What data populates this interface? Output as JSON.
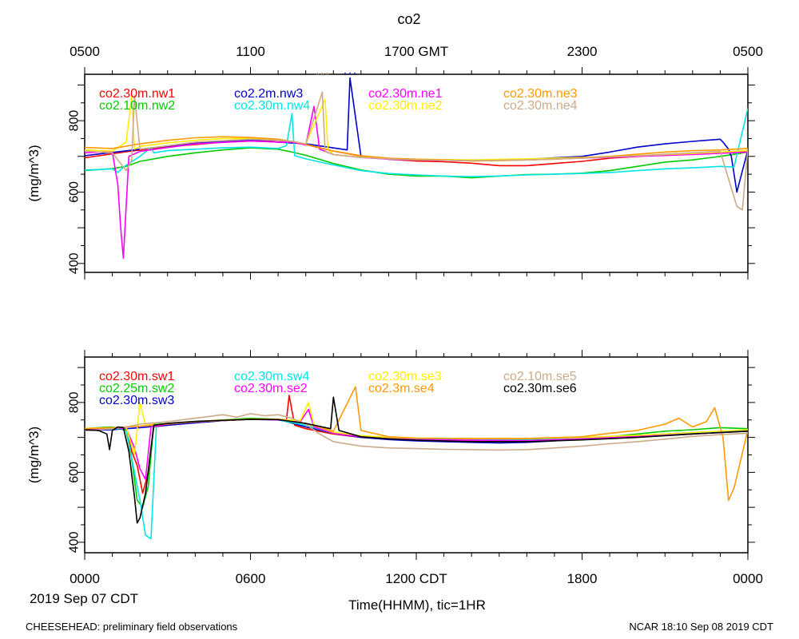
{
  "title": "co2",
  "footer_left": "CHEESEHEAD: preliminary field observations",
  "footer_right": "NCAR 18:10 Sep 08 2019 CDT",
  "date_label": "2019 Sep 07 CDT",
  "chart_data": [
    {
      "type": "line",
      "panel": "top",
      "title": "co2",
      "ylabel": "(mg/m^3)",
      "ylim": [
        375,
        930
      ],
      "yticks": [
        400,
        600,
        800
      ],
      "xlim": [
        0,
        24
      ],
      "x_units": "hours since 0000 CDT",
      "top_axis": {
        "ticks": [
          0,
          6,
          12,
          18,
          24
        ],
        "labels": [
          "0500",
          "1100",
          "1700 GMT",
          "2300",
          "0500"
        ]
      },
      "legend": [
        [
          "co2.30m.nw1",
          "co2.2m.nw3",
          "co2.30m.ne1",
          "co2.30m.ne3"
        ],
        [
          "co2.10m.nw2",
          "co2.30m.nw4",
          "co2.30m.ne2",
          "co2.30m.ne4"
        ]
      ],
      "series": [
        {
          "name": "co2.30m.nw1",
          "color": "#ff0000",
          "x": [
            0,
            1.5,
            3,
            4,
            5,
            6,
            7,
            7.5,
            8,
            9,
            10,
            11,
            12,
            13,
            14,
            15,
            16,
            17,
            18,
            19,
            20,
            21,
            22,
            23,
            24
          ],
          "y": [
            696,
            713,
            727,
            733,
            740,
            743,
            745,
            740,
            733,
            715,
            701,
            692,
            687,
            685,
            681,
            674,
            674,
            680,
            686,
            695,
            700,
            705,
            708,
            712,
            715
          ]
        },
        {
          "name": "co2.10m.nw2",
          "color": "#00cc00",
          "x": [
            0,
            1,
            1.5,
            2,
            3,
            4,
            5,
            6,
            7,
            7.5,
            8,
            9,
            10,
            11,
            12,
            13,
            14,
            15,
            16,
            17,
            18,
            19,
            20,
            21,
            22,
            23,
            24
          ],
          "y": [
            660,
            666,
            672,
            686,
            700,
            710,
            718,
            724,
            720,
            712,
            703,
            680,
            662,
            650,
            645,
            645,
            640,
            645,
            649,
            650,
            653,
            660,
            672,
            684,
            690,
            700,
            712
          ]
        },
        {
          "name": "co2.2m.nw3",
          "color": "#0000cc",
          "x": [
            0,
            2,
            4,
            6,
            8,
            9.5,
            9.6,
            10,
            11,
            12,
            14,
            16,
            18,
            19,
            20,
            21,
            22,
            23,
            23.1,
            23.3,
            23.4,
            23.6,
            24
          ],
          "y": [
            702,
            720,
            738,
            745,
            735,
            718,
            920,
            700,
            692,
            690,
            688,
            692,
            700,
            712,
            726,
            735,
            742,
            748,
            740,
            720,
            700,
            600,
            718
          ]
        },
        {
          "name": "co2.30m.nw4",
          "color": "#00e5e5",
          "x": [
            0,
            0.5,
            1,
            1.2,
            1.4,
            2,
            2.4,
            2.5,
            3,
            4,
            5,
            6,
            7,
            7.3,
            7.5,
            7.6,
            8,
            9,
            10,
            11,
            12,
            13,
            14,
            15,
            16,
            17,
            18,
            19,
            20,
            21,
            22,
            23,
            23.5,
            24
          ],
          "y": [
            662,
            663,
            665,
            655,
            670,
            700,
            725,
            710,
            716,
            720,
            724,
            726,
            722,
            730,
            820,
            702,
            693,
            676,
            660,
            652,
            648,
            645,
            643,
            645,
            648,
            650,
            652,
            655,
            660,
            665,
            668,
            672,
            670,
            835
          ]
        },
        {
          "name": "co2.30m.ne1",
          "color": "#ff00ff",
          "x": [
            0,
            0.5,
            1,
            1.2,
            1.3,
            1.4,
            1.6,
            2,
            4,
            6,
            7,
            7.5,
            8,
            8.3,
            8.5,
            9,
            10,
            11,
            12,
            14,
            16,
            18,
            20,
            22,
            24
          ],
          "y": [
            710,
            712,
            712,
            620,
            500,
            415,
            700,
            714,
            735,
            743,
            740,
            740,
            732,
            840,
            720,
            705,
            697,
            692,
            690,
            688,
            690,
            695,
            700,
            705,
            712
          ]
        },
        {
          "name": "co2.30m.ne2",
          "color": "#ffee00",
          "x": [
            0,
            1,
            1.5,
            1.7,
            1.8,
            2,
            3,
            4,
            5,
            6,
            7,
            7.5,
            8,
            8.7,
            8.8,
            9,
            10,
            11,
            12,
            14,
            16,
            18,
            20,
            22,
            24
          ],
          "y": [
            718,
            715,
            740,
            870,
            720,
            728,
            738,
            745,
            750,
            750,
            746,
            742,
            735,
            860,
            720,
            705,
            698,
            694,
            692,
            690,
            693,
            697,
            702,
            708,
            716
          ]
        },
        {
          "name": "co2.30m.ne3",
          "color": "#ff9900",
          "x": [
            0,
            1,
            2,
            3,
            4,
            5,
            6,
            7,
            7.5,
            8,
            9,
            10,
            11,
            12,
            13,
            14,
            15,
            16,
            17,
            18,
            19,
            20,
            21,
            22,
            23,
            24
          ],
          "y": [
            725,
            722,
            735,
            745,
            752,
            755,
            753,
            748,
            742,
            734,
            715,
            702,
            695,
            692,
            690,
            687,
            688,
            690,
            692,
            696,
            700,
            706,
            712,
            716,
            718,
            722
          ]
        },
        {
          "name": "co2.30m.ne4",
          "color": "#ccaa88",
          "x": [
            0,
            1,
            1.5,
            1.7,
            1.8,
            2,
            3,
            4,
            6,
            7,
            7.5,
            8,
            8.6,
            8.7,
            9,
            10,
            11,
            12,
            14,
            16,
            18,
            20,
            22,
            23,
            23.6,
            23.8,
            24
          ],
          "y": [
            715,
            710,
            660,
            690,
            870,
            720,
            730,
            740,
            748,
            745,
            742,
            735,
            880,
            715,
            705,
            697,
            693,
            690,
            688,
            690,
            695,
            702,
            710,
            714,
            560,
            550,
            720
          ]
        }
      ]
    },
    {
      "type": "line",
      "panel": "bottom",
      "ylabel": "(mg/m^3)",
      "ylim": [
        370,
        930
      ],
      "yticks": [
        400,
        600,
        800
      ],
      "xlim": [
        0,
        24
      ],
      "x_units": "hours since 0000 CDT",
      "xticks": [
        0,
        6,
        12,
        18,
        24
      ],
      "xticklabels": [
        "0000",
        "0600",
        "1200 CDT",
        "1800",
        "0000"
      ],
      "xlabel": "Time(HHMM), tic=1HR",
      "legend": [
        [
          "co2.30m.sw1",
          "co2.30m.sw4",
          "co2.30m.se3",
          "co2.10m.se5"
        ],
        [
          "co2.25m.sw2",
          "co2.30m.se2",
          "co2.3m.se4",
          "co2.30m.se6"
        ],
        [
          "co2.30m.sw3"
        ]
      ],
      "series": [
        {
          "name": "co2.30m.sw1",
          "color": "#ff0000",
          "x": [
            0,
            1,
            1.5,
            1.7,
            1.9,
            2.1,
            2.3,
            2.5,
            3,
            4,
            5,
            6,
            7,
            7.3,
            7.4,
            7.6,
            8,
            9,
            10,
            11,
            12,
            14,
            16,
            18,
            20,
            22,
            24
          ],
          "y": [
            722,
            725,
            728,
            660,
            620,
            540,
            600,
            730,
            735,
            742,
            748,
            752,
            752,
            750,
            820,
            735,
            725,
            710,
            700,
            696,
            694,
            691,
            690,
            695,
            702,
            710,
            720
          ]
        },
        {
          "name": "co2.25m.sw2",
          "color": "#00cc00",
          "x": [
            0,
            0.5,
            1,
            1.5,
            1.7,
            1.9,
            2.1,
            2.3,
            2.5,
            3,
            4,
            5,
            6,
            7,
            8,
            9,
            10,
            11,
            12,
            14,
            16,
            18,
            19,
            20,
            21,
            22,
            23,
            24
          ],
          "y": [
            725,
            728,
            730,
            720,
            640,
            520,
            500,
            560,
            740,
            738,
            745,
            750,
            755,
            752,
            730,
            712,
            702,
            698,
            695,
            693,
            693,
            697,
            702,
            710,
            718,
            722,
            728,
            725
          ]
        },
        {
          "name": "co2.30m.sw3",
          "color": "#0000cc",
          "x": [
            0,
            1,
            2,
            3,
            4,
            5,
            6,
            7,
            8,
            9,
            10,
            11,
            12,
            13,
            14,
            15,
            16,
            17,
            18,
            19,
            20,
            21,
            22,
            23,
            24
          ],
          "y": [
            720,
            722,
            728,
            735,
            742,
            748,
            752,
            752,
            730,
            712,
            700,
            694,
            690,
            688,
            686,
            684,
            686,
            690,
            695,
            700,
            705,
            710,
            714,
            716,
            720
          ]
        },
        {
          "name": "co2.30m.sw4",
          "color": "#00e5e5",
          "x": [
            0,
            1,
            1.5,
            1.8,
            2.0,
            2.2,
            2.4,
            2.6,
            3,
            4,
            6,
            7,
            8,
            9,
            10,
            11,
            12,
            14,
            16,
            18,
            20,
            22,
            24
          ],
          "y": [
            722,
            724,
            726,
            600,
            520,
            420,
            410,
            740,
            738,
            745,
            752,
            750,
            735,
            712,
            703,
            698,
            695,
            693,
            692,
            697,
            705,
            712,
            720
          ]
        },
        {
          "name": "co2.30m.se2",
          "color": "#ff00ff",
          "x": [
            0,
            1,
            1.5,
            1.8,
            2.0,
            2.2,
            2.4,
            3,
            4,
            6,
            7,
            7.8,
            8.1,
            8.3,
            9,
            10,
            11,
            12,
            14,
            16,
            18,
            20,
            22,
            24
          ],
          "y": [
            724,
            726,
            727,
            670,
            610,
            580,
            730,
            738,
            745,
            752,
            750,
            745,
            780,
            730,
            712,
            702,
            697,
            694,
            692,
            691,
            696,
            703,
            710,
            718
          ]
        },
        {
          "name": "co2.30m.se3",
          "color": "#ffee00",
          "x": [
            0,
            1,
            1.5,
            1.8,
            2.0,
            2.2,
            3,
            4,
            6,
            7,
            7.8,
            8.1,
            8.3,
            9,
            10,
            11,
            12,
            14,
            16,
            18,
            20,
            22,
            24
          ],
          "y": [
            726,
            728,
            730,
            650,
            800,
            735,
            740,
            746,
            753,
            752,
            748,
            800,
            735,
            715,
            705,
            700,
            698,
            697,
            697,
            700,
            706,
            714,
            722
          ]
        },
        {
          "name": "co2.3m.se4",
          "color": "#ff9900",
          "x": [
            0,
            1,
            2,
            4,
            6,
            7,
            8,
            9,
            9.8,
            10,
            11,
            12,
            14,
            16,
            18,
            19,
            20,
            21,
            21.5,
            22,
            22.5,
            22.8,
            23.1,
            23.3,
            23.5,
            24
          ],
          "y": [
            725,
            728,
            732,
            745,
            752,
            752,
            740,
            718,
            845,
            720,
            702,
            698,
            697,
            697,
            702,
            712,
            720,
            738,
            755,
            730,
            745,
            785,
            700,
            520,
            555,
            722
          ]
        },
        {
          "name": "co2.10m.se5",
          "color": "#ccaa88",
          "x": [
            0,
            0.5,
            1,
            1.5,
            2,
            3,
            4,
            4.5,
            5,
            5.5,
            6,
            6.5,
            7,
            7.5,
            8,
            8.5,
            9,
            10,
            11,
            12,
            13,
            14,
            15,
            16,
            17,
            18,
            19,
            20,
            21,
            22,
            23,
            24
          ],
          "y": [
            720,
            722,
            725,
            730,
            738,
            745,
            755,
            760,
            765,
            758,
            768,
            762,
            765,
            755,
            738,
            710,
            688,
            675,
            670,
            668,
            666,
            665,
            664,
            665,
            670,
            675,
            682,
            688,
            695,
            703,
            708,
            712
          ]
        },
        {
          "name": "co2.30m.se6",
          "color": "#000000",
          "x": [
            0,
            0.5,
            0.8,
            0.9,
            1.0,
            1.2,
            1.4,
            1.6,
            1.8,
            1.9,
            2.0,
            2.2,
            2.5,
            3,
            4,
            6,
            7,
            8,
            8.9,
            9.0,
            9.2,
            10,
            11,
            12,
            14,
            16,
            18,
            20,
            22,
            24
          ],
          "y": [
            722,
            720,
            710,
            665,
            720,
            730,
            728,
            660,
            530,
            455,
            470,
            540,
            735,
            740,
            746,
            752,
            751,
            740,
            725,
            815,
            720,
            702,
            696,
            692,
            688,
            688,
            693,
            700,
            710,
            718
          ]
        }
      ]
    }
  ]
}
